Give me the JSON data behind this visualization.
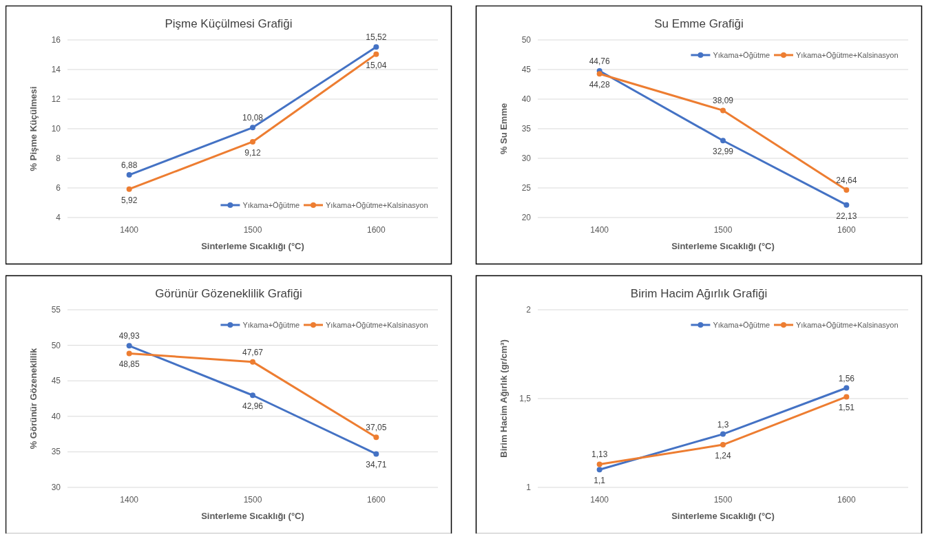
{
  "chart_data": [
    {
      "type": "line",
      "title": "Pişme Küçülmesi Grafiği",
      "xlabel": "Sinterleme Sıcaklığı (°C)",
      "ylabel": "% Pişme Küçülmesi",
      "categories": [
        "1400",
        "1500",
        "1600"
      ],
      "ylim": [
        4,
        16
      ],
      "yticks": [
        4,
        6,
        8,
        10,
        12,
        14,
        16
      ],
      "grid": "y",
      "legend": "bottom right",
      "marker": "circle",
      "series": [
        {
          "name": "Yıkama+Öğütme",
          "color": "#4472c4",
          "values": [
            6.88,
            10.08,
            15.52
          ],
          "value_labels": [
            "6,88",
            "10,08",
            "15,52"
          ]
        },
        {
          "name": "Yıkama+Öğütme+Kalsinasyon",
          "color": "#ed7d31",
          "values": [
            5.92,
            9.12,
            15.04
          ],
          "value_labels": [
            "5,92",
            "9,12",
            "15,04"
          ]
        }
      ]
    },
    {
      "type": "line",
      "title": "Su Emme Grafiği",
      "xlabel": "Sinterleme Sıcaklığı (°C)",
      "ylabel": "% Su Emme",
      "categories": [
        "1400",
        "1500",
        "1600"
      ],
      "ylim": [
        20,
        50
      ],
      "yticks": [
        20,
        25,
        30,
        35,
        40,
        45,
        50
      ],
      "grid": "y",
      "legend": "top right",
      "marker": "circle",
      "series": [
        {
          "name": "Yıkama+Öğütme",
          "color": "#4472c4",
          "values": [
            44.76,
            32.99,
            22.13
          ],
          "value_labels": [
            "44,76",
            "32,99",
            "22,13"
          ]
        },
        {
          "name": "Yıkama+Öğütme+Kalsinasyon",
          "color": "#ed7d31",
          "values": [
            44.28,
            38.09,
            24.64
          ],
          "value_labels": [
            "44,28",
            "38,09",
            "24,64"
          ]
        }
      ]
    },
    {
      "type": "line",
      "title": "Görünür Gözeneklilik Grafiği",
      "xlabel": "Sinterleme Sıcaklığı (°C)",
      "ylabel": "% Görünür Gözeneklilik",
      "categories": [
        "1400",
        "1500",
        "1600"
      ],
      "ylim": [
        30,
        55
      ],
      "yticks": [
        30,
        35,
        40,
        45,
        50,
        55
      ],
      "grid": "y",
      "legend": "top right",
      "marker": "circle",
      "series": [
        {
          "name": "Yıkama+Öğütme",
          "color": "#4472c4",
          "values": [
            49.93,
            42.96,
            34.71
          ],
          "value_labels": [
            "49,93",
            "42,96",
            "34,71"
          ]
        },
        {
          "name": "Yıkama+Öğütme+Kalsinasyon",
          "color": "#ed7d31",
          "values": [
            48.85,
            47.67,
            37.05
          ],
          "value_labels": [
            "48,85",
            "47,67",
            "37,05"
          ]
        }
      ]
    },
    {
      "type": "line",
      "title": "Birim Hacim Ağırlık Grafiği",
      "xlabel": "Sinterleme Sıcaklığı (°C)",
      "ylabel": "Birim Hacim Ağırlık (gr/cm³)",
      "categories": [
        "1400",
        "1500",
        "1600"
      ],
      "ylim": [
        1,
        2
      ],
      "yticks": [
        1,
        {
          "value": 1.5,
          "label": "1,5"
        },
        2
      ],
      "grid": "y",
      "legend": "top right",
      "marker": "circle",
      "series": [
        {
          "name": "Yıkama+Öğütme",
          "color": "#4472c4",
          "values": [
            1.1,
            1.3,
            1.56
          ],
          "value_labels": [
            "1,1",
            "1,3",
            "1,56"
          ]
        },
        {
          "name": "Yıkama+Öğütme+Kalsinasyon",
          "color": "#ed7d31",
          "values": [
            1.13,
            1.24,
            1.51
          ],
          "value_labels": [
            "1,13",
            "1,24",
            "1,51"
          ]
        }
      ]
    }
  ]
}
